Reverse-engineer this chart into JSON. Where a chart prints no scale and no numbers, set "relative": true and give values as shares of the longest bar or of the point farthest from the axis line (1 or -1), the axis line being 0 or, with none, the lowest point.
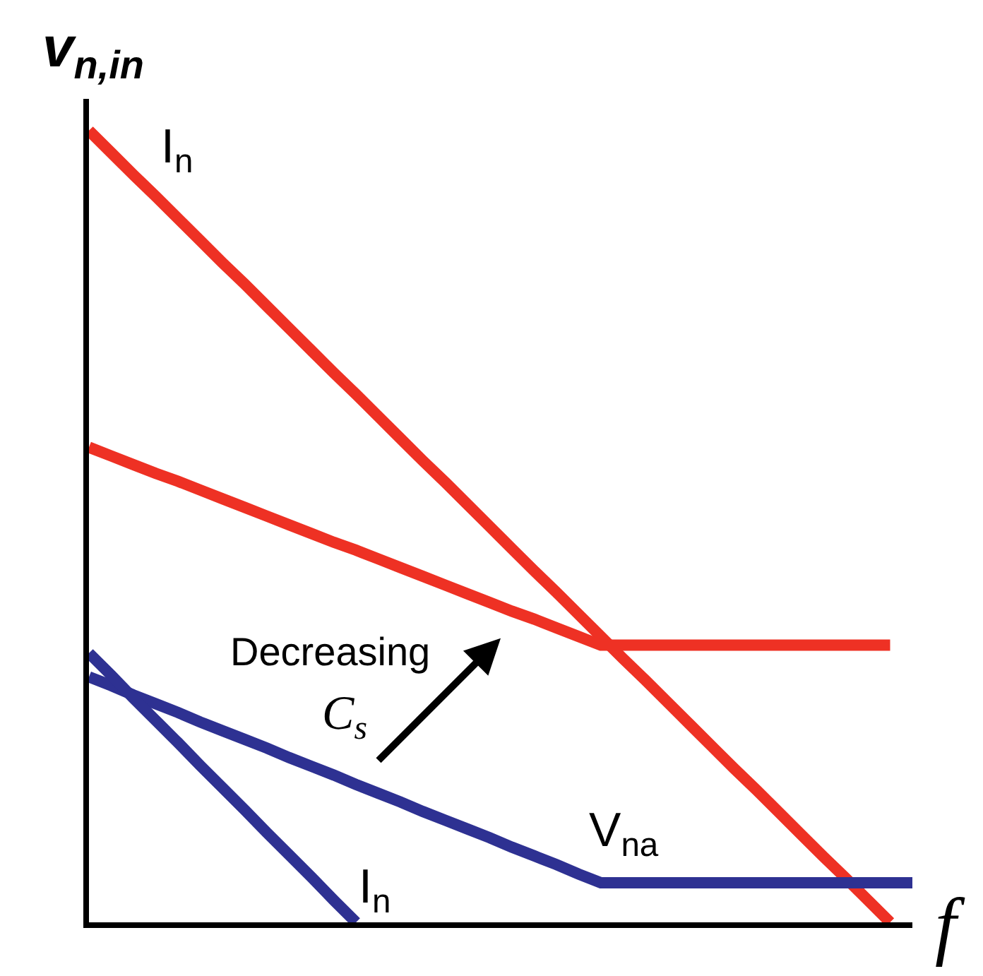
{
  "chart_data": {
    "type": "line",
    "relative": true,
    "xlabel": "f",
    "ylabel": "v$_{n,in}$",
    "categories": [
      null,
      null,
      null,
      null,
      null,
      null,
      null,
      null,
      null,
      null,
      null,
      null,
      null,
      null,
      null,
      null,
      null,
      null,
      null,
      null,
      null,
      null,
      null,
      null,
      null,
      null,
      null,
      null,
      null,
      null,
      null,
      null,
      null,
      null,
      null,
      null,
      null,
      null
    ],
    "series": [
      {
        "name": "I$_{n}$",
        "color": "#ee3124",
        "values": [
          1.0,
          0.972,
          0.944,
          0.917,
          0.889,
          0.861,
          0.833,
          0.806,
          0.778,
          0.75,
          0.722,
          0.694,
          0.667,
          0.639,
          0.611,
          0.583,
          0.556,
          0.528,
          0.5,
          0.472,
          0.444,
          0.417,
          0.389,
          0.361,
          0.333,
          0.306,
          0.278,
          0.25,
          0.222,
          0.194,
          0.167,
          0.139,
          0.111,
          0.083,
          0.056,
          0.028,
          0.0,
          null
        ]
      },
      {
        "color": "#ee3124",
        "values": [
          0.6,
          0.589,
          0.578,
          0.567,
          0.557,
          0.546,
          0.535,
          0.524,
          0.513,
          0.502,
          0.491,
          0.48,
          0.47,
          0.459,
          0.448,
          0.437,
          0.426,
          0.415,
          0.404,
          0.393,
          0.383,
          0.372,
          0.361,
          0.35,
          0.35,
          0.35,
          0.35,
          0.35,
          0.35,
          0.35,
          0.35,
          0.35,
          0.35,
          0.35,
          0.35,
          0.35,
          0.35,
          null
        ]
      },
      {
        "name": "V$_{na}$",
        "color": "#2e3192",
        "values": [
          0.31,
          0.299,
          0.287,
          0.276,
          0.265,
          0.253,
          0.242,
          0.231,
          0.22,
          0.208,
          0.197,
          0.186,
          0.174,
          0.163,
          0.152,
          0.14,
          0.129,
          0.118,
          0.107,
          0.095,
          0.084,
          0.073,
          0.061,
          0.05,
          0.05,
          0.05,
          0.05,
          0.05,
          0.05,
          0.05,
          0.05,
          0.05,
          0.05,
          0.05,
          0.05,
          0.05,
          0.05,
          0.05
        ]
      },
      {
        "name": "I$_{n}$",
        "color": "#2e3192",
        "values": [
          0.34,
          0.312,
          0.283,
          0.255,
          0.227,
          0.198,
          0.17,
          0.142,
          0.113,
          0.085,
          0.057,
          0.028,
          0.0,
          null,
          null,
          null,
          null,
          null,
          null,
          null,
          null,
          null,
          null,
          null,
          null,
          null,
          null,
          null,
          null,
          null,
          null,
          null,
          null,
          null,
          null,
          null,
          null,
          null
        ]
      }
    ],
    "annotations": [
      "Decreasing",
      "C$_{s}$"
    ],
    "line_style": "solid"
  }
}
